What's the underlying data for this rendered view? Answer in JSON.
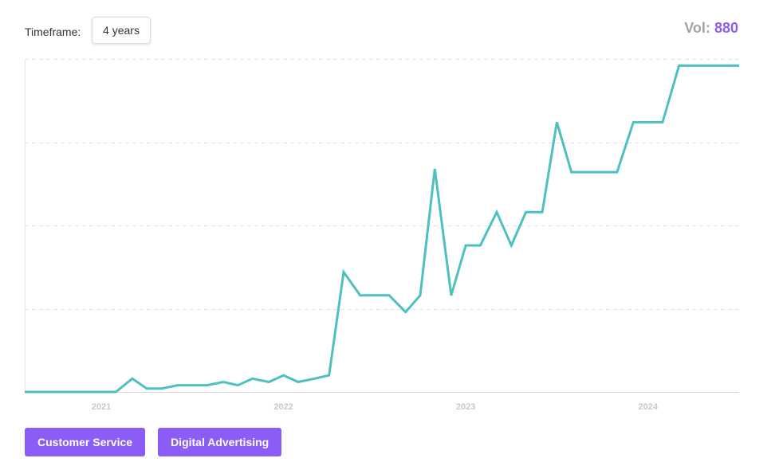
{
  "header": {
    "timeframe_label": "Timeframe:",
    "timeframe_value": "4 years",
    "vol_label": "Vol:",
    "vol_value": "880"
  },
  "tags": [
    {
      "label": "Customer Service"
    },
    {
      "label": "Digital Advertising"
    }
  ],
  "colors": {
    "line": "#4dc0bf",
    "accent": "#8b5cf6",
    "grid": "#e2e2e2",
    "tick": "#c8c8c8"
  },
  "chart_data": {
    "type": "line",
    "title": "",
    "xlabel": "",
    "ylabel": "",
    "x_tick_labels": [
      "2021",
      "2022",
      "2023",
      "2024"
    ],
    "x_tick_positions": [
      2021.0,
      2022.0,
      2023.0,
      2024.0
    ],
    "xlim": [
      2020.58,
      2024.5
    ],
    "ylim": [
      0,
      100
    ],
    "y_gridlines": [
      0,
      25,
      50,
      75,
      100
    ],
    "grid": true,
    "legend": "none",
    "series": [
      {
        "x": [
          2020.58,
          2020.67,
          2020.75,
          2020.83,
          2020.92,
          2021.0,
          2021.08,
          2021.17,
          2021.25,
          2021.33,
          2021.42,
          2021.5,
          2021.58,
          2021.67,
          2021.75,
          2021.83,
          2021.92,
          2022.0,
          2022.08,
          2022.17,
          2022.25,
          2022.33,
          2022.42,
          2022.5,
          2022.58,
          2022.67,
          2022.75,
          2022.83,
          2022.92,
          2023.0,
          2023.08,
          2023.17,
          2023.25,
          2023.33,
          2023.42,
          2023.5,
          2023.58,
          2023.67,
          2023.75,
          2023.83,
          2023.92,
          2024.0,
          2024.08,
          2024.17,
          2024.25,
          2024.33,
          2024.42,
          2024.5
        ],
        "values": [
          0,
          0,
          0,
          0,
          0,
          0,
          0,
          4,
          1,
          1,
          2,
          2,
          2,
          3,
          2,
          4,
          3,
          5,
          3,
          4,
          5,
          36,
          29,
          29,
          29,
          24,
          29,
          67,
          29,
          44,
          44,
          54,
          44,
          54,
          54,
          81,
          66,
          66,
          66,
          66,
          81,
          81,
          81,
          98,
          98,
          98,
          98,
          98
        ]
      }
    ]
  }
}
